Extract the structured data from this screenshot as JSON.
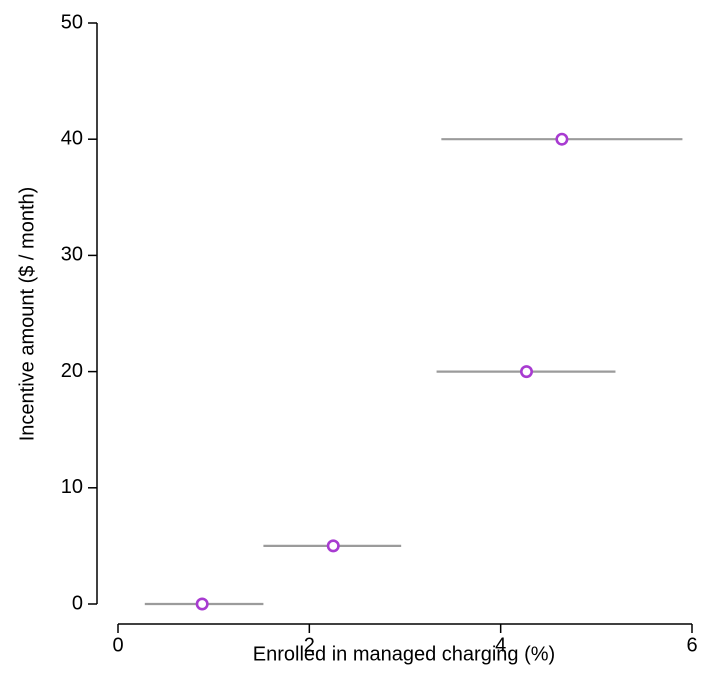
{
  "chart_data": {
    "type": "scatter",
    "title": "",
    "xlabel": "Enrolled in managed charging (%)",
    "ylabel": "Incentive amount ($ / month)",
    "xlim": [
      0,
      6
    ],
    "ylim": [
      0,
      50
    ],
    "x_ticks": [
      0,
      2,
      4,
      6
    ],
    "y_ticks": [
      0,
      10,
      20,
      30,
      40,
      50
    ],
    "grid": false,
    "legend": "none",
    "point_color": "#a83bd1",
    "interval_color": "#9b9b9b",
    "points": [
      {
        "x": 0.88,
        "y": 0,
        "x_low": 0.28,
        "x_high": 1.52
      },
      {
        "x": 2.25,
        "y": 5,
        "x_low": 1.52,
        "x_high": 2.96
      },
      {
        "x": 4.27,
        "y": 20,
        "x_low": 3.33,
        "x_high": 5.2
      },
      {
        "x": 4.64,
        "y": 40,
        "x_low": 3.38,
        "x_high": 5.9
      }
    ]
  }
}
